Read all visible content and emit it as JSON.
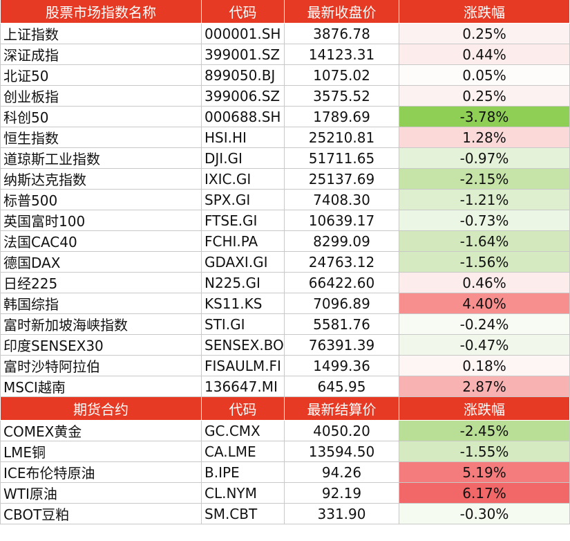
{
  "sections": [
    {
      "header": {
        "name": "股票市场指数名称",
        "code": "代码",
        "price": "最新收盘价",
        "change": "涨跌幅"
      },
      "rows": [
        {
          "name": "上证指数",
          "code": "000001.SH",
          "price": "3876.78",
          "change": "0.25%",
          "color": "#fdf2f2"
        },
        {
          "name": "深证成指",
          "code": "399001.SZ",
          "price": "14123.31",
          "change": "0.44%",
          "color": "#fcecec"
        },
        {
          "name": "北证50",
          "code": "899050.BJ",
          "price": "1075.02",
          "change": "0.05%",
          "color": "#fefbfb"
        },
        {
          "name": "创业板指",
          "code": "399006.SZ",
          "price": "3575.52",
          "change": "0.25%",
          "color": "#fdf2f2"
        },
        {
          "name": "科创50",
          "code": "000688.SH",
          "price": "1789.69",
          "change": "-3.78%",
          "color": "#8fcf55"
        },
        {
          "name": "恒生指数",
          "code": "HSI.HI",
          "price": "25210.81",
          "change": "1.28%",
          "color": "#fbd9d9"
        },
        {
          "name": "道琼斯工业指数",
          "code": "DJI.GI",
          "price": "51711.65",
          "change": "-0.97%",
          "color": "#e5f2da"
        },
        {
          "name": "纳斯达克指数",
          "code": "IXIC.GI",
          "price": "25137.69",
          "change": "-2.15%",
          "color": "#c6e4a8"
        },
        {
          "name": "标普500",
          "code": "SPX.GI",
          "price": "7408.30",
          "change": "-1.21%",
          "color": "#deefcf"
        },
        {
          "name": "英国富时100",
          "code": "FTSE.GI",
          "price": "10639.17",
          "change": "-0.73%",
          "color": "#ecf6e4"
        },
        {
          "name": "法国CAC40",
          "code": "FCHI.PA",
          "price": "8299.09",
          "change": "-1.64%",
          "color": "#d3e9bd"
        },
        {
          "name": "德国DAX",
          "code": "GDAXI.GI",
          "price": "24763.12",
          "change": "-1.56%",
          "color": "#d5eac0"
        },
        {
          "name": "日经225",
          "code": "N225.GI",
          "price": "66422.60",
          "change": "0.46%",
          "color": "#fcecec"
        },
        {
          "name": "韩国综指",
          "code": "KS11.KS",
          "price": "7096.89",
          "change": "4.40%",
          "color": "#f78f8f"
        },
        {
          "name": "富时新加坡海峡指数",
          "code": "STI.GI",
          "price": "5581.76",
          "change": "-0.24%",
          "color": "#f7fbf3"
        },
        {
          "name": "印度SENSEX30",
          "code": "SENSEX.BO",
          "price": "76391.39",
          "change": "-0.47%",
          "color": "#f1f8eb"
        },
        {
          "name": "富时沙特阿拉伯",
          "code": "FISAULM.FI",
          "price": "1499.36",
          "change": "0.18%",
          "color": "#fef5f5"
        },
        {
          "name": "MSCI越南",
          "code": "136647.MI",
          "price": "645.95",
          "change": "2.87%",
          "color": "#f9b2b2"
        }
      ]
    },
    {
      "header": {
        "name": "期货合约",
        "code": "代码",
        "price": "最新结算价",
        "change": "涨跌幅"
      },
      "rows": [
        {
          "name": "COMEX黄金",
          "code": "GC.CMX",
          "price": "4050.20",
          "change": "-2.45%",
          "color": "#b9de95"
        },
        {
          "name": "LME铜",
          "code": "CA.LME",
          "price": "13594.50",
          "change": "-1.55%",
          "color": "#d5eac0"
        },
        {
          "name": "ICE布伦特原油",
          "code": "B.IPE",
          "price": "94.26",
          "change": "5.19%",
          "color": "#f57c7c"
        },
        {
          "name": "WTI原油",
          "code": "CL.NYM",
          "price": "92.19",
          "change": "6.17%",
          "color": "#f26767"
        },
        {
          "name": "CBOT豆粕",
          "code": "SM.CBT",
          "price": "331.90",
          "change": "-0.30%",
          "color": "#f6fbf1"
        }
      ]
    }
  ]
}
